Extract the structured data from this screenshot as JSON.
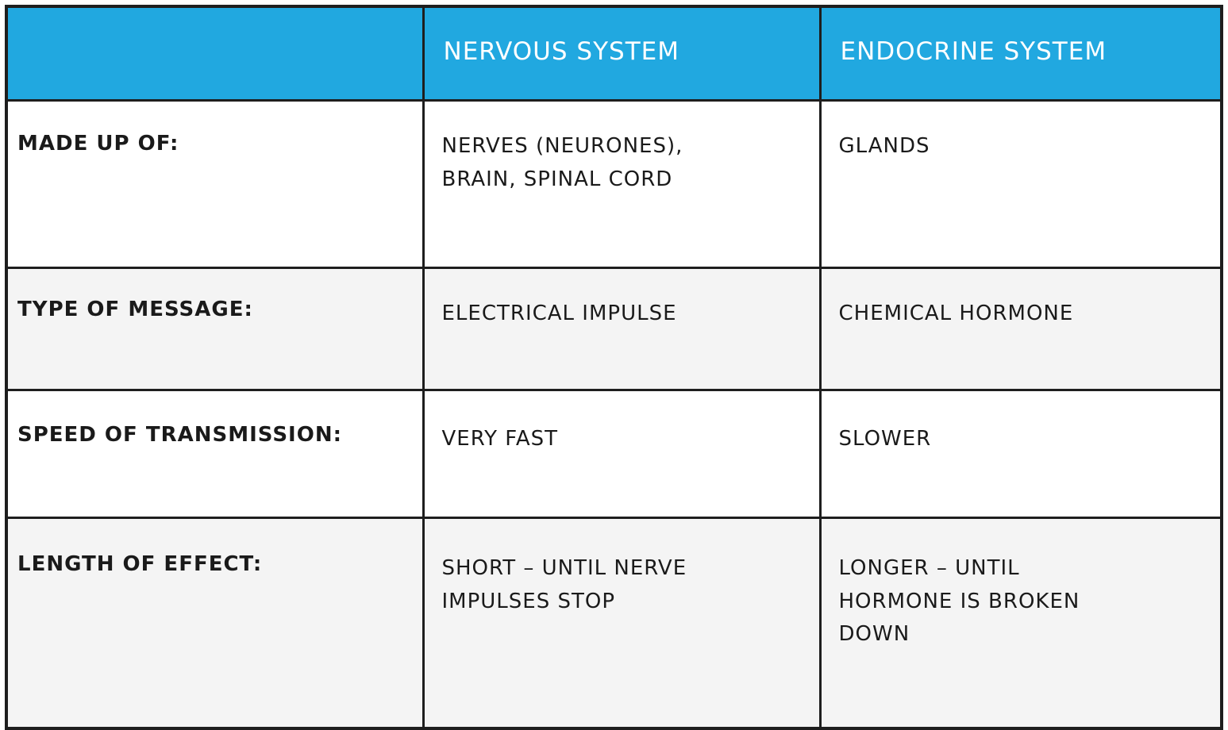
{
  "colors": {
    "header_bg": "#21a8e0",
    "header_text": "#ffffff",
    "border": "#1e1e1e",
    "alt_row_bg": "#f4f4f4"
  },
  "watermark_icon": "brand-logo-icon",
  "table": {
    "headers": [
      "",
      "NERVOUS SYSTEM",
      "ENDOCRINE SYSTEM"
    ],
    "rows": [
      {
        "label": "MADE UP OF:",
        "nervous": [
          "NERVES (NEURONES),",
          "BRAIN, SPINAL CORD"
        ],
        "endocrine": [
          "GLANDS"
        ]
      },
      {
        "label": "TYPE OF MESSAGE:",
        "nervous": [
          "ELECTRICAL IMPULSE"
        ],
        "endocrine": [
          "CHEMICAL HORMONE"
        ]
      },
      {
        "label": "SPEED OF TRANSMISSION:",
        "nervous": [
          "VERY FAST"
        ],
        "endocrine": [
          "SLOWER"
        ]
      },
      {
        "label": "LENGTH OF EFFECT:",
        "nervous": [
          "SHORT – UNTIL NERVE",
          "IMPULSES STOP"
        ],
        "endocrine": [
          "LONGER – UNTIL",
          "HORMONE IS BROKEN",
          "DOWN"
        ]
      }
    ]
  }
}
